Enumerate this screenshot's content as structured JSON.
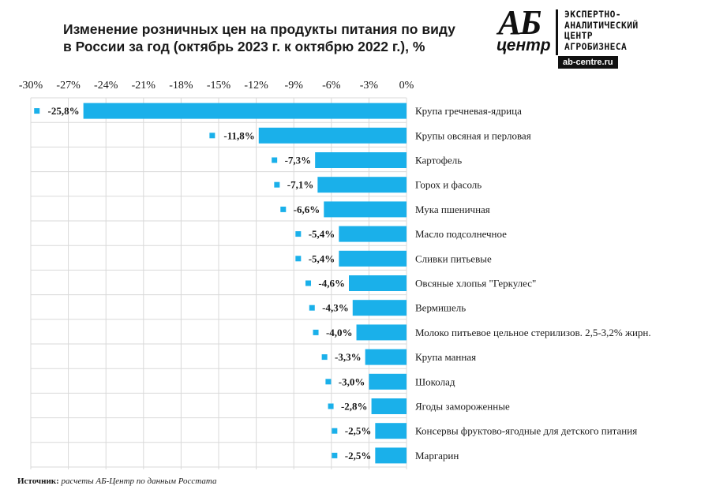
{
  "title": {
    "line1": "Изменение  розничных цен на продукты питания по виду",
    "line2": "в России за год (октябрь 2023 г. к октябрю 2022 г.), %"
  },
  "logo": {
    "mark_top": "АБ",
    "mark_bottom": "центр",
    "org_line1": "ЭКСПЕРТНО-",
    "org_line2": "АНАЛИТИЧЕСКИЙ",
    "org_line3": "ЦЕНТР",
    "org_line4": "АГРОБИЗНЕСА",
    "site": "ab-centre.ru"
  },
  "colors": {
    "bar": "#1ab0ea",
    "grid": "#d9d9d9",
    "marker": "#1ab0ea"
  },
  "source": {
    "label": "Источник:",
    "text": " расчеты АБ-Центр  по данным Росстата"
  },
  "chart_data": {
    "type": "bar",
    "orientation": "horizontal",
    "title": "Изменение  розничных цен на продукты питания по виду в России за год (октябрь 2023 г. к октябрю 2022 г.), %",
    "xlim": [
      -30,
      0
    ],
    "xticks": [
      -30,
      -27,
      -24,
      -21,
      -18,
      -15,
      -12,
      -9,
      -6,
      -3,
      0
    ],
    "xtick_labels": [
      "-30%",
      "-27%",
      "-24%",
      "-21%",
      "-18%",
      "-15%",
      "-12%",
      "-9%",
      "-6%",
      "-3%",
      "0%"
    ],
    "grid": true,
    "categories": [
      "Крупа гречневая-ядрица",
      "Крупы овсяная и перловая",
      "Картофель",
      "Горох и фасоль",
      "Мука пшеничная",
      "Масло подсолнечное",
      "Сливки питьевые",
      "Овсяные хлопья \"Геркулес\"",
      "Вермишель",
      "Молоко питьевое цельное стерилизов. 2,5-3,2% жирн.",
      "Крупа манная",
      "Шоколад",
      "Ягоды замороженные",
      "Консервы фруктово-ягодные для детского питания",
      "Маргарин"
    ],
    "values": [
      -25.8,
      -11.8,
      -7.3,
      -7.1,
      -6.6,
      -5.4,
      -5.4,
      -4.6,
      -4.3,
      -4.0,
      -3.3,
      -3.0,
      -2.8,
      -2.5,
      -2.5
    ],
    "value_labels": [
      "-25,8%",
      "-11,8%",
      "-7,3%",
      "-7,1%",
      "-6,6%",
      "-5,4%",
      "-5,4%",
      "-4,6%",
      "-4,3%",
      "-4,0%",
      "-3,3%",
      "-3,0%",
      "-2,8%",
      "-2,5%",
      "-2,5%"
    ]
  }
}
